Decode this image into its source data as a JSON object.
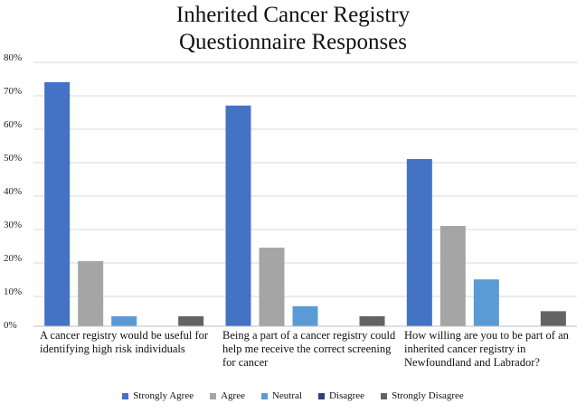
{
  "chart_data": {
    "type": "bar",
    "title_lines": [
      "Inherited Cancer Registry",
      "Questionnaire Responses"
    ],
    "categories": [
      "A cancer registry would be useful for identifying high risk individuals",
      "Being a part of a cancer registry could help me receive the correct screening for cancer",
      "How willing are you to be part of an inherited cancer registry in Newfoundland and Labrador?"
    ],
    "y_tick_labels": [
      "80%",
      "70%",
      "60%",
      "50%",
      "40%",
      "30%",
      "20%",
      "10%",
      "0%"
    ],
    "ylim": [
      0,
      80
    ],
    "ylabel": "",
    "xlabel": "",
    "grid": true,
    "legend_position": "bottom",
    "series": [
      {
        "name": "Strongly Agree",
        "color": "#4472C4",
        "values": [
          73,
          66,
          50
        ]
      },
      {
        "name": "Agree",
        "color": "#A5A5A5",
        "values": [
          19.5,
          23.5,
          30
        ]
      },
      {
        "name": "Neutral",
        "color": "#5B9BD5",
        "values": [
          3,
          6,
          14
        ]
      },
      {
        "name": "Disagree",
        "color": "#264478",
        "values": [
          0,
          0,
          0
        ]
      },
      {
        "name": "Strongly Disagree",
        "color": "#636363",
        "values": [
          3,
          3,
          4.5
        ]
      }
    ]
  }
}
